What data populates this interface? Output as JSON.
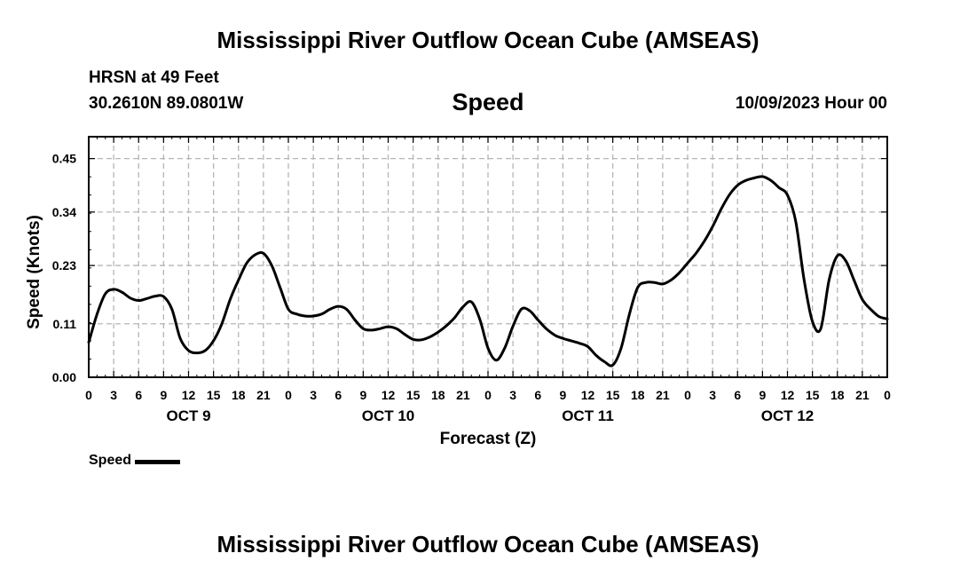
{
  "header": {
    "title": "Mississippi River Outflow Ocean Cube (AMSEAS)",
    "station": "HRSN at 49 Feet",
    "coordinates": "30.2610N  89.0801W",
    "plot_title": "Speed",
    "date_hour": "10/09/2023 Hour 00"
  },
  "footer": {
    "title": "Mississippi River Outflow Ocean Cube (AMSEAS)"
  },
  "legend": {
    "label": "Speed"
  },
  "chart_data": {
    "type": "line",
    "title": "Speed",
    "xlabel": "Forecast (Z)",
    "ylabel": "Speed (Knots)",
    "ylim": [
      0,
      0.5
    ],
    "yticks": [
      0.0,
      0.11,
      0.23,
      0.34,
      0.45
    ],
    "ytick_labels": [
      "0.00",
      "0.11",
      "0.23",
      "0.34",
      "0.45"
    ],
    "xlim": [
      0,
      96
    ],
    "xticks": [
      0,
      3,
      6,
      9,
      12,
      15,
      18,
      21,
      24,
      27,
      30,
      33,
      36,
      39,
      42,
      45,
      48,
      51,
      54,
      57,
      60,
      63,
      66,
      69,
      72,
      75,
      78,
      81,
      84,
      87,
      90,
      93,
      96
    ],
    "xtick_labels": [
      "0",
      "3",
      "6",
      "9",
      "12",
      "15",
      "18",
      "21",
      "0",
      "3",
      "6",
      "9",
      "12",
      "15",
      "18",
      "21",
      "0",
      "3",
      "6",
      "9",
      "12",
      "15",
      "18",
      "21",
      "0",
      "3",
      "6",
      "9",
      "12",
      "15",
      "18",
      "21",
      "0"
    ],
    "day_labels": [
      {
        "label": "OCT 9",
        "hour": 12
      },
      {
        "label": "OCT 10",
        "hour": 36
      },
      {
        "label": "OCT 11",
        "hour": 60
      },
      {
        "label": "OCT 12",
        "hour": 84
      }
    ],
    "grid": true,
    "series": [
      {
        "name": "Speed",
        "color": "#000000",
        "x": [
          0,
          1,
          2,
          3,
          4,
          5,
          6,
          7,
          8,
          9,
          10,
          11,
          12,
          13,
          14,
          15,
          16,
          17,
          18,
          19,
          20,
          21,
          22,
          23,
          24,
          25,
          26,
          27,
          28,
          29,
          30,
          31,
          32,
          33,
          34,
          35,
          36,
          37,
          38,
          39,
          40,
          41,
          42,
          43,
          44,
          45,
          46,
          47,
          48,
          49,
          50,
          51,
          52,
          53,
          54,
          55,
          56,
          57,
          58,
          59,
          60,
          61,
          62,
          63,
          64,
          65,
          66,
          67,
          68,
          69,
          70,
          71,
          72,
          73,
          74,
          75,
          76,
          77,
          78,
          79,
          80,
          81,
          82,
          83,
          84,
          85,
          86,
          87,
          88,
          89,
          90,
          91,
          92,
          93,
          94,
          95,
          96
        ],
        "values": [
          0.072,
          0.13,
          0.172,
          0.181,
          0.175,
          0.163,
          0.158,
          0.162,
          0.167,
          0.166,
          0.14,
          0.08,
          0.055,
          0.05,
          0.055,
          0.075,
          0.11,
          0.16,
          0.2,
          0.235,
          0.252,
          0.255,
          0.23,
          0.185,
          0.14,
          0.13,
          0.126,
          0.126,
          0.13,
          0.14,
          0.146,
          0.14,
          0.118,
          0.1,
          0.097,
          0.1,
          0.104,
          0.1,
          0.088,
          0.078,
          0.077,
          0.083,
          0.093,
          0.106,
          0.123,
          0.145,
          0.155,
          0.12,
          0.06,
          0.035,
          0.06,
          0.105,
          0.14,
          0.137,
          0.118,
          0.1,
          0.087,
          0.08,
          0.075,
          0.07,
          0.063,
          0.045,
          0.032,
          0.025,
          0.06,
          0.13,
          0.185,
          0.195,
          0.195,
          0.192,
          0.2,
          0.215,
          0.235,
          0.255,
          0.28,
          0.31,
          0.345,
          0.375,
          0.395,
          0.405,
          0.41,
          0.413,
          0.405,
          0.39,
          0.375,
          0.32,
          0.2,
          0.115,
          0.1,
          0.2,
          0.25,
          0.24,
          0.2,
          0.16,
          0.14,
          0.125,
          0.12
        ]
      }
    ]
  }
}
